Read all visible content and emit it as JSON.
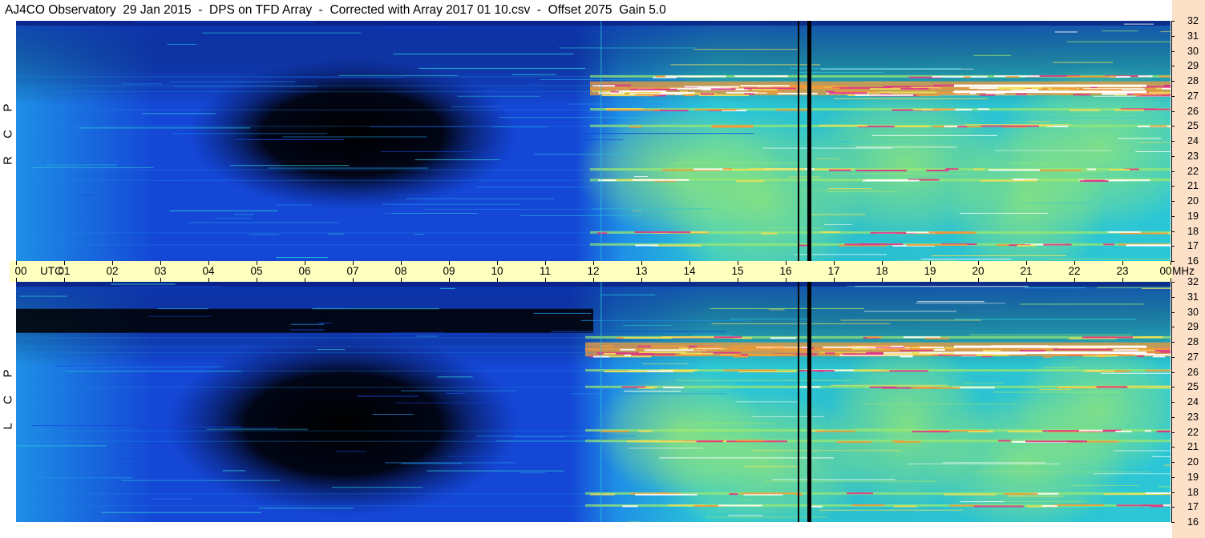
{
  "title": "AJ4CO Observatory  29 Jan 2015  -  DPS on TFD Array  -  Corrected with Array 2017 01 10.csv  -  Offset 2075  Gain 5.0",
  "colors": {
    "deep": "#000000",
    "dark_blue": "#0a1c7a",
    "blue": "#1447d6",
    "light_blue": "#1e8fe6",
    "cyan": "#2cc7d6",
    "green": "#9be870",
    "yellow": "#f0e058",
    "orange": "#f19a3a",
    "magenta": "#e0338a",
    "white": "#ffffff"
  },
  "chart_data": [
    {
      "type": "heatmap",
      "panel": "RCP",
      "side_label": [
        "R",
        "C",
        "P"
      ],
      "x_unit": "UTC",
      "x_ticks": [
        "00",
        "01",
        "02",
        "03",
        "04",
        "05",
        "06",
        "07",
        "08",
        "09",
        "10",
        "11",
        "12",
        "13",
        "14",
        "15",
        "16",
        "17",
        "18",
        "19",
        "20",
        "21",
        "22",
        "23",
        "00"
      ],
      "y_unit": "MHz",
      "y_ticks": [
        "16",
        "17",
        "18",
        "19",
        "20",
        "21",
        "22",
        "23",
        "24",
        "25",
        "26",
        "27",
        "28",
        "29",
        "30",
        "31",
        "32"
      ],
      "xlim_hours": [
        0,
        24
      ],
      "ylim_mhz": [
        16,
        32
      ],
      "dark_region": {
        "center_hour": 7.0,
        "center_mhz": 24.5,
        "span_hours": 5.5,
        "span_mhz": 7
      },
      "bright_start_hour": 12.1,
      "interference_bands_mhz": [
        17.1,
        17.9,
        21.4,
        22.1,
        25.0,
        26.1,
        27.3,
        27.7,
        28.3
      ],
      "data_gap_hours": [
        16.35,
        16.5
      ]
    },
    {
      "type": "heatmap",
      "panel": "LCP",
      "side_label": [
        "L",
        "C",
        "P"
      ],
      "x_unit": "UTC",
      "x_ticks": [
        "00",
        "01",
        "02",
        "03",
        "04",
        "05",
        "06",
        "07",
        "08",
        "09",
        "10",
        "11",
        "12",
        "13",
        "14",
        "15",
        "16",
        "17",
        "18",
        "19",
        "20",
        "21",
        "22",
        "23",
        "00"
      ],
      "y_unit": "MHz",
      "y_ticks": [
        "16",
        "17",
        "18",
        "19",
        "20",
        "21",
        "22",
        "23",
        "24",
        "25",
        "26",
        "27",
        "28",
        "29",
        "30",
        "31",
        "32"
      ],
      "xlim_hours": [
        0,
        24
      ],
      "ylim_mhz": [
        16,
        32
      ],
      "dark_region": {
        "center_hour": 6.8,
        "center_mhz": 22.5,
        "span_hours": 6.0,
        "span_mhz": 9
      },
      "dark_band_mhz": [
        28.6,
        30.2
      ],
      "bright_start_hour": 12.0,
      "interference_bands_mhz": [
        17.1,
        17.9,
        21.4,
        22.1,
        25.0,
        26.1,
        27.3,
        27.7,
        28.3
      ],
      "data_gap_hours": [
        16.35,
        16.5
      ]
    }
  ]
}
